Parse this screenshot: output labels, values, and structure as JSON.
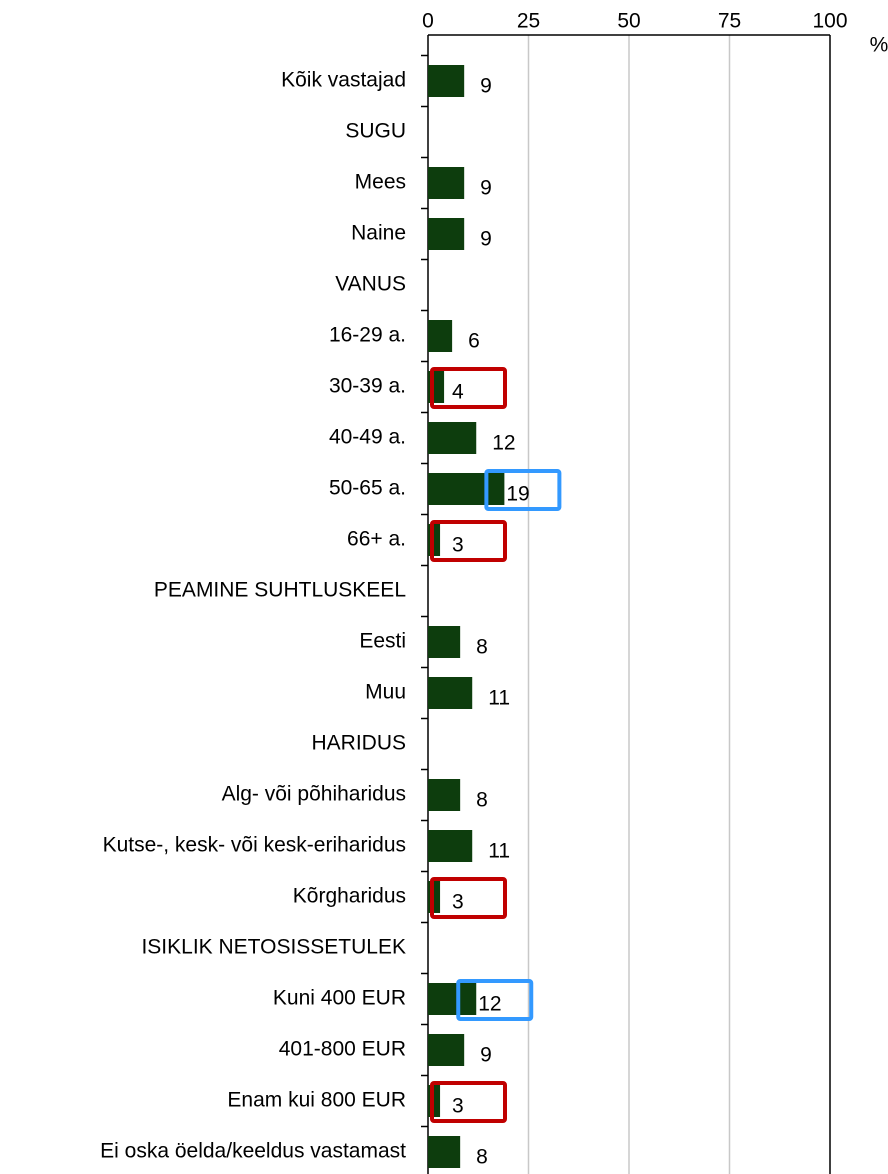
{
  "chart_data": {
    "type": "bar",
    "orientation": "horizontal",
    "x_axis_label": "%",
    "categories": [
      "Kõik vastajad",
      "SUGU",
      "Mees",
      "Naine",
      "VANUS",
      "16-29 a.",
      "30-39 a.",
      "40-49 a.",
      "50-65 a.",
      "66+ a.",
      "PEAMINE SUHTLUSKEEL",
      "Eesti",
      "Muu",
      "HARIDUS",
      "Alg- või põhiharidus",
      "Kutse-, kesk- või kesk-eriharidus",
      "Kõrgharidus",
      "ISIKLIK NETOSISSETULEK",
      "Kuni 400 EUR",
      "401-800 EUR",
      "Enam kui 800 EUR",
      "Ei oska öelda/keeldus vastamast"
    ],
    "values": [
      9,
      null,
      9,
      9,
      null,
      6,
      4,
      12,
      19,
      3,
      null,
      8,
      11,
      null,
      8,
      11,
      3,
      null,
      12,
      9,
      3,
      8
    ],
    "highlight": [
      null,
      null,
      null,
      null,
      null,
      null,
      "#c00000",
      null,
      "#3399ff",
      "#c00000",
      null,
      null,
      null,
      null,
      null,
      null,
      "#c00000",
      null,
      "#3399ff",
      null,
      "#c00000",
      null
    ],
    "color": "#0d3d0d",
    "xlim": [
      0,
      100
    ],
    "xticks": [
      0,
      25,
      50,
      75,
      100
    ],
    "grid": true
  }
}
